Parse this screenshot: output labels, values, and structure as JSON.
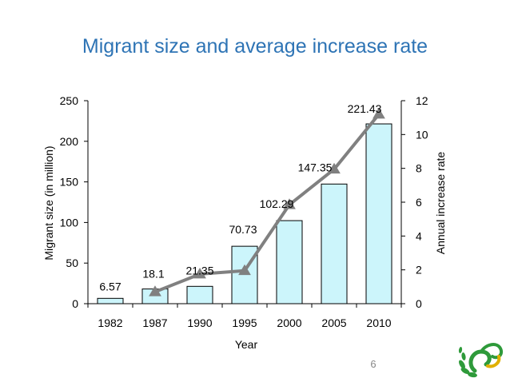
{
  "slide": {
    "title": "Migrant size and average increase rate",
    "page_number": "6"
  },
  "colors": {
    "title": "#2e74b5",
    "bar_fill": "#ccf5fb",
    "bar_stroke": "#000000",
    "line": "#808080"
  },
  "chart_data": {
    "type": "bar",
    "categories": [
      "1982",
      "1987",
      "1990",
      "1995",
      "2000",
      "2005",
      "2010"
    ],
    "series": [
      {
        "type": "bar",
        "axis": "left",
        "values": [
          6.57,
          18.1,
          21.35,
          70.73,
          102.29,
          147.35,
          221.43
        ],
        "labels": [
          "6.57",
          "18.1",
          "21.35",
          "70.73",
          "102.29",
          "147.35",
          "221.43"
        ]
      },
      {
        "type": "line",
        "axis": "right",
        "marker": "triangle",
        "x": [
          "1987",
          "1990",
          "1995",
          "2000",
          "2005",
          "2010"
        ],
        "values": [
          0.7,
          1.75,
          1.95,
          5.85,
          7.95,
          11.2
        ]
      }
    ],
    "xlabel": "Year",
    "ylabel": "Migrant size (in million)",
    "y2label": "Annual increase rate",
    "ylim": [
      0,
      250
    ],
    "yticks": [
      0,
      50,
      100,
      150,
      200,
      250
    ],
    "y2lim": [
      0,
      12
    ],
    "y2ticks": [
      0,
      2,
      4,
      6,
      8,
      10,
      12
    ],
    "grid": false,
    "legend": "none"
  }
}
